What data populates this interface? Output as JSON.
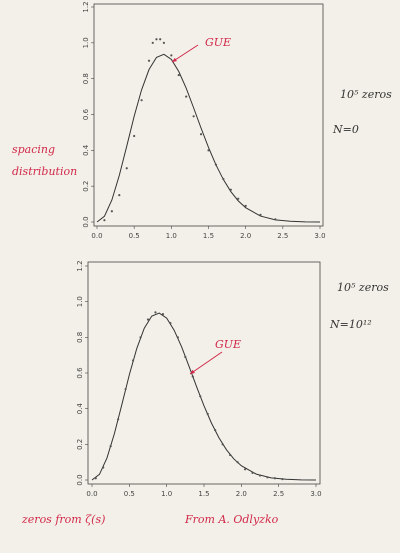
{
  "chart_data": [
    {
      "type": "line",
      "xlim": [
        0,
        3
      ],
      "ylim": [
        0,
        1.2
      ],
      "xticks": [
        {
          "value": 0,
          "label": "0.0"
        },
        0.5,
        {
          "value": 1,
          "label": "1.0"
        },
        1.5,
        {
          "value": 2,
          "label": "2.0"
        },
        2.5,
        {
          "value": 3,
          "label": "3.0"
        }
      ],
      "yticks": [
        {
          "value": 0,
          "label": "0.0"
        },
        0.2,
        0.4,
        0.6,
        0.8,
        {
          "value": 1,
          "label": "1.0"
        },
        1.2
      ],
      "series": [
        {
          "kind": "line",
          "color": "#333333",
          "x": [
            0,
            0.1,
            0.2,
            0.3,
            0.4,
            0.5,
            0.6,
            0.7,
            0.8,
            0.9,
            1.0,
            1.1,
            1.2,
            1.3,
            1.4,
            1.5,
            1.6,
            1.7,
            1.8,
            1.9,
            2.0,
            2.2,
            2.4,
            2.6,
            2.8,
            3.0
          ],
          "values": [
            0,
            0.032,
            0.123,
            0.26,
            0.423,
            0.59,
            0.738,
            0.851,
            0.919,
            0.936,
            0.908,
            0.84,
            0.747,
            0.637,
            0.524,
            0.416,
            0.319,
            0.237,
            0.17,
            0.118,
            0.08,
            0.033,
            0.012,
            0.004,
            0.001,
            0
          ]
        },
        {
          "kind": "scatter",
          "color": "#555555",
          "x": [
            0.1,
            0.2,
            0.3,
            0.4,
            0.5,
            0.6,
            0.7,
            0.75,
            0.8,
            0.85,
            0.9,
            1.0,
            1.1,
            1.2,
            1.3,
            1.4,
            1.5,
            1.6,
            1.7,
            1.8,
            1.9,
            2.0,
            2.2,
            2.4
          ],
          "values": [
            0.01,
            0.06,
            0.15,
            0.3,
            0.48,
            0.68,
            0.9,
            1.0,
            1.02,
            1.02,
            1.0,
            0.93,
            0.82,
            0.7,
            0.59,
            0.49,
            0.4,
            0.32,
            0.24,
            0.18,
            0.13,
            0.09,
            0.04,
            0.015
          ]
        }
      ],
      "annotations": [
        {
          "text": "GUE",
          "color": "#d2284a"
        },
        {
          "text": "10⁵ zeros",
          "color": "#333333"
        },
        {
          "text": "N=0",
          "color": "#333333"
        },
        {
          "text": "spacing",
          "color": "#d2284a"
        },
        {
          "text": "distribution",
          "color": "#d2284a"
        }
      ]
    },
    {
      "type": "line",
      "xlim": [
        0,
        3
      ],
      "ylim": [
        0,
        1.2
      ],
      "xticks": [
        {
          "value": 0,
          "label": "0.0"
        },
        0.5,
        {
          "value": 1,
          "label": "1.0"
        },
        1.5,
        {
          "value": 2,
          "label": "2.0"
        },
        2.5,
        {
          "value": 3,
          "label": "3.0"
        }
      ],
      "yticks": [
        {
          "value": 0,
          "label": "0.0"
        },
        0.2,
        0.4,
        0.6,
        0.8,
        {
          "value": 1,
          "label": "1.0"
        },
        1.2
      ],
      "series": [
        {
          "kind": "line",
          "color": "#333333",
          "x": [
            0,
            0.1,
            0.2,
            0.3,
            0.4,
            0.5,
            0.6,
            0.7,
            0.8,
            0.9,
            1.0,
            1.1,
            1.2,
            1.3,
            1.4,
            1.5,
            1.6,
            1.7,
            1.8,
            1.9,
            2.0,
            2.2,
            2.4,
            2.6,
            2.8,
            3.0
          ],
          "values": [
            0,
            0.032,
            0.123,
            0.26,
            0.423,
            0.59,
            0.738,
            0.851,
            0.919,
            0.936,
            0.908,
            0.84,
            0.747,
            0.637,
            0.524,
            0.416,
            0.319,
            0.237,
            0.17,
            0.118,
            0.08,
            0.033,
            0.012,
            0.004,
            0.001,
            0
          ]
        },
        {
          "kind": "scatter",
          "color": "#555555",
          "x": [
            0.05,
            0.15,
            0.25,
            0.35,
            0.45,
            0.55,
            0.65,
            0.75,
            0.85,
            0.95,
            1.05,
            1.15,
            1.25,
            1.35,
            1.45,
            1.55,
            1.65,
            1.75,
            1.85,
            1.95,
            2.05,
            2.15,
            2.25,
            2.35,
            2.45,
            2.55
          ],
          "values": [
            0.01,
            0.07,
            0.19,
            0.34,
            0.51,
            0.67,
            0.8,
            0.9,
            0.94,
            0.93,
            0.88,
            0.8,
            0.69,
            0.58,
            0.47,
            0.37,
            0.28,
            0.2,
            0.14,
            0.1,
            0.06,
            0.04,
            0.025,
            0.015,
            0.01,
            0.005
          ]
        }
      ],
      "annotations": [
        {
          "text": "10⁵ zeros",
          "color": "#333333"
        },
        {
          "text": "N=10¹²",
          "color": "#333333"
        },
        {
          "text": "GUE",
          "color": "#d2284a"
        },
        {
          "text": "zeros from ζ(s)",
          "color": "#d2284a"
        },
        {
          "text": "From A. Odlyzko",
          "color": "#d2284a"
        }
      ]
    }
  ]
}
